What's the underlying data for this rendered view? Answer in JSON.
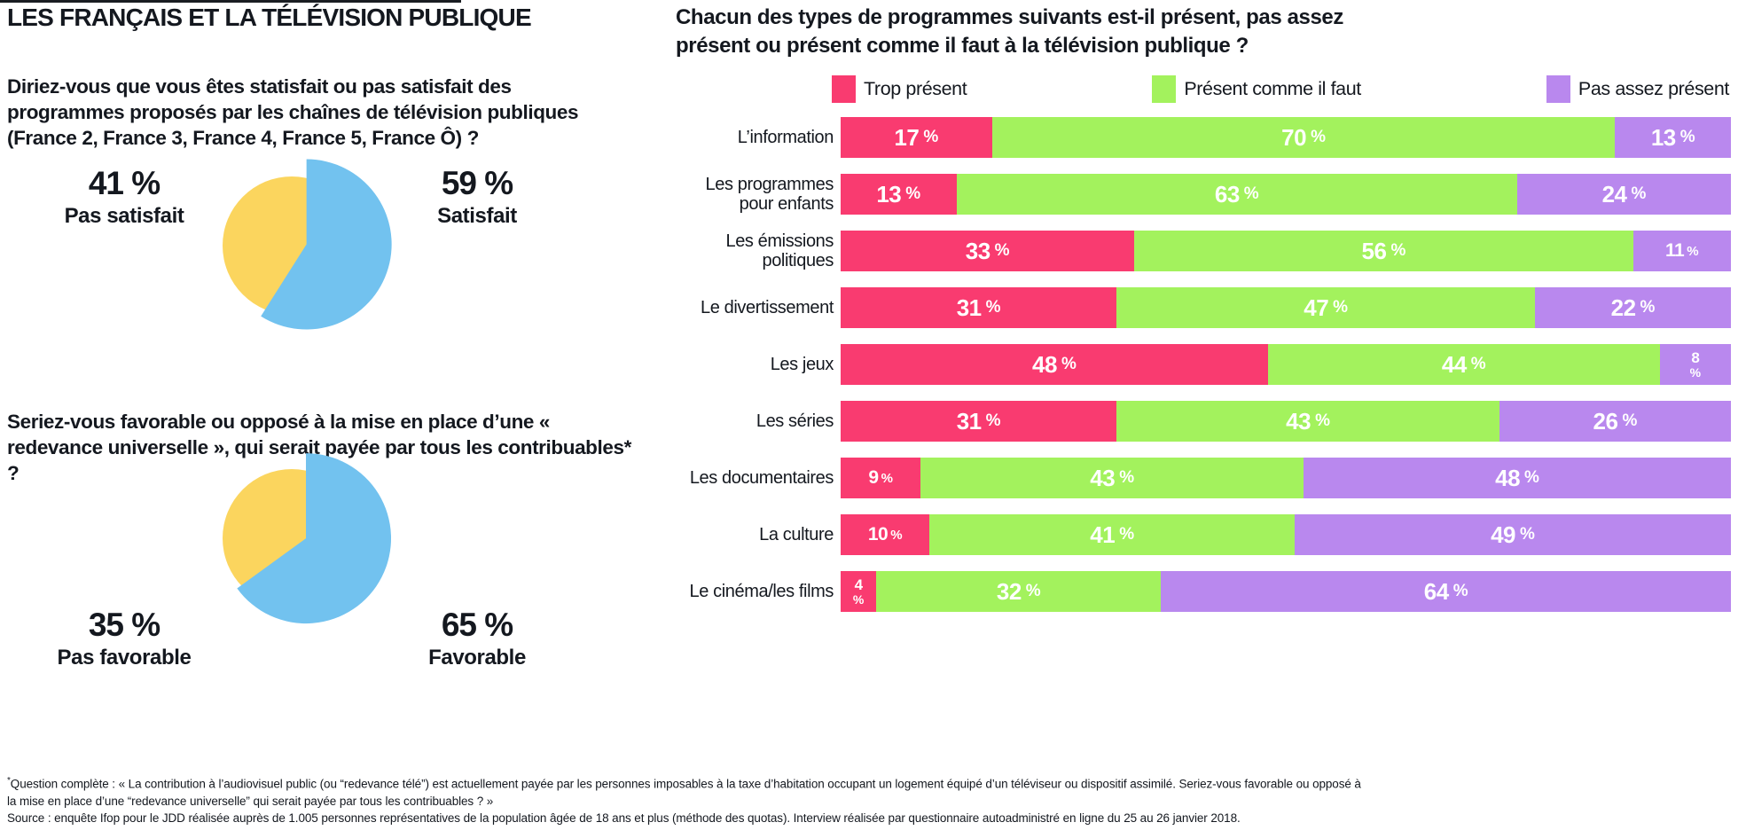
{
  "colors": {
    "pink": "#F93B70",
    "green": "#A3F25D",
    "purple": "#B988EE",
    "yellow": "#FBD55E",
    "blue": "#72C2EF",
    "text": "#14181F",
    "value_text": "#FFFFFF"
  },
  "left": {
    "title": "LES FRANÇAIS ET LA TÉLÉVISION PUBLIQUE",
    "q1": {
      "text": "Diriez-vous que vous êtes statisfait ou pas satisfait des programmes proposés par les chaînes de télévision publiques (France 2, France 3, France 4, France 5, France Ô) ?",
      "left_value": "41 %",
      "left_label": "Pas satisfait",
      "right_value": "59 %",
      "right_label": "Satisfait"
    },
    "q2": {
      "text": "Seriez-vous favorable ou opposé à la mise en place d’une « redevance universelle », qui serait payée par tous les contribuables* ?",
      "left_value": "35 %",
      "left_label": "Pas favorable",
      "right_value": "65 %",
      "right_label": "Favorable"
    }
  },
  "right": {
    "title": "Chacun des types de programmes suivants est-il présent, pas assez présent ou présent comme il faut à la télévision publique ?",
    "legend": [
      {
        "label": "Trop présent",
        "color": "#F93B70"
      },
      {
        "label": "Présent comme il faut",
        "color": "#A3F25D"
      },
      {
        "label": "Pas assez présent",
        "color": "#B988EE"
      }
    ]
  },
  "footer": {
    "marker": "*",
    "note": "Question complète : « La contribution à l’audiovisuel public (ou “redevance télé”) est actuellement payée par les personnes imposables à la taxe d’habitation occupant un logement équipé d’un téléviseur ou dispositif assimilé. Seriez-vous favorable ou opposé à la mise en place d’une “redevance universelle” qui serait payée par tous les contribuables ? »",
    "source": "Source : enquête Ifop pour le JDD réalisée auprès de 1.005 personnes représentatives de la population âgée de 18 ans et plus (méthode des quotas). Interview réalisée par questionnaire autoadministré en ligne du 25 au 26 janvier 2018."
  },
  "chart_data": [
    {
      "type": "pie",
      "question": "Diriez-vous que vous êtes statisfait ou pas satisfait des programmes proposés par les chaînes de télévision publiques (France 2, France 3, France 4, France 5, France Ô) ?",
      "slices": [
        {
          "label": "Satisfait",
          "value": 59,
          "color": "#72C2EF"
        },
        {
          "label": "Pas satisfait",
          "value": 41,
          "color": "#FBD55E"
        }
      ],
      "style": "exploded main slice, starts at 12 o'clock, clockwise"
    },
    {
      "type": "pie",
      "question": "Seriez-vous favorable ou opposé à la mise en place d’une « redevance universelle », qui serait payée par tous les contribuables ?",
      "slices": [
        {
          "label": "Favorable",
          "value": 65,
          "color": "#72C2EF"
        },
        {
          "label": "Pas favorable",
          "value": 35,
          "color": "#FBD55E"
        }
      ],
      "style": "exploded main slice, starts at 12 o'clock, clockwise"
    },
    {
      "type": "bar",
      "stacked": true,
      "orientation": "horizontal",
      "unit": "%",
      "xlim": [
        0,
        100
      ],
      "title": "Chacun des types de programmes suivants est-il présent, pas assez présent ou présent comme il faut à la télévision publique ?",
      "categories": [
        "L’information",
        "Les programmes pour enfants",
        "Les émissions politiques",
        "Le divertissement",
        "Les jeux",
        "Les séries",
        "Les documentaires",
        "La culture",
        "Le cinéma/les films"
      ],
      "series_colors": [
        "#F93B70",
        "#A3F25D",
        "#B988EE"
      ],
      "series": [
        {
          "name": "Trop présent",
          "values": [
            17,
            13,
            33,
            31,
            48,
            31,
            9,
            10,
            4
          ]
        },
        {
          "name": "Présent comme il faut",
          "values": [
            70,
            63,
            56,
            47,
            44,
            43,
            43,
            41,
            32
          ]
        },
        {
          "name": "Pas assez présent",
          "values": [
            13,
            24,
            11,
            22,
            8,
            26,
            48,
            49,
            64
          ]
        }
      ],
      "legend_position": "top"
    }
  ]
}
